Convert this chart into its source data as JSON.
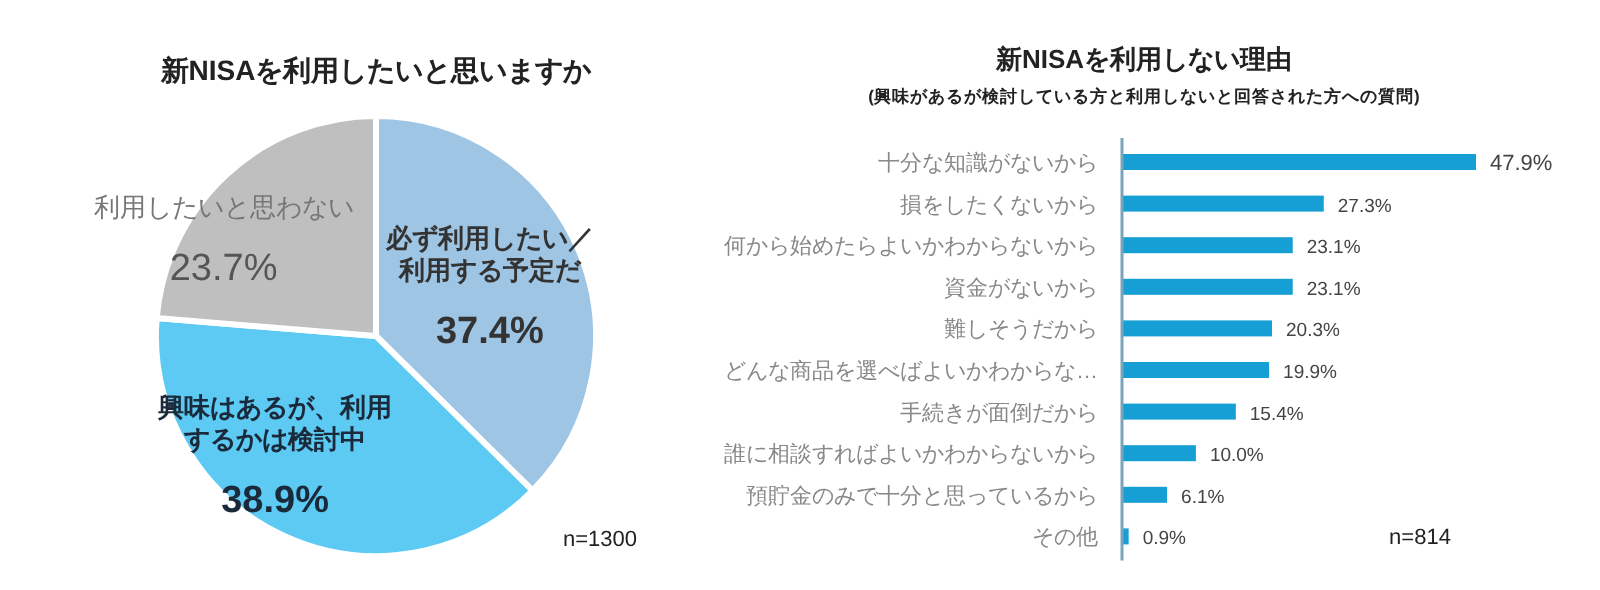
{
  "chart_data": [
    {
      "type": "pie",
      "title": "新NISAを利用したいと思いますか",
      "categories": [
        "必ず利用したい／利用する予定だ",
        "興味はあるが、利用するかは検討中",
        "利用したいと思わない"
      ],
      "values": [
        37.4,
        38.9,
        23.7
      ],
      "colors": [
        "#9fc5e5",
        "#5ccaf2",
        "#bfbfbf"
      ],
      "value_labels": [
        "37.4%",
        "38.9%",
        "23.7%"
      ],
      "annotations": [
        "n=1300"
      ]
    },
    {
      "type": "bar",
      "orientation": "horizontal",
      "title": "新NISAを利用しない理由",
      "subtitle": "(興味があるが検討している方と利用しないと回答された方への質問)",
      "categories": [
        "十分な知識がないから",
        "損をしたくないから",
        "何から始めたらよいかわからないから",
        "資金がないから",
        "難しそうだから",
        "どんな商品を選べばよいかわからな…",
        "手続きが面倒だから",
        "誰に相談すればよいかわからないから",
        "預貯金のみで十分と思っているから",
        "その他"
      ],
      "values": [
        47.9,
        27.3,
        23.1,
        23.1,
        20.3,
        19.9,
        15.4,
        10.0,
        6.1,
        0.9
      ],
      "color": "#169fd5",
      "value_labels": [
        "47.9%",
        "27.3%",
        "23.1%",
        "23.1%",
        "20.3%",
        "19.9%",
        "15.4%",
        "10.0%",
        "6.1%",
        "0.9%"
      ],
      "annotations": [
        "n=814"
      ]
    }
  ]
}
